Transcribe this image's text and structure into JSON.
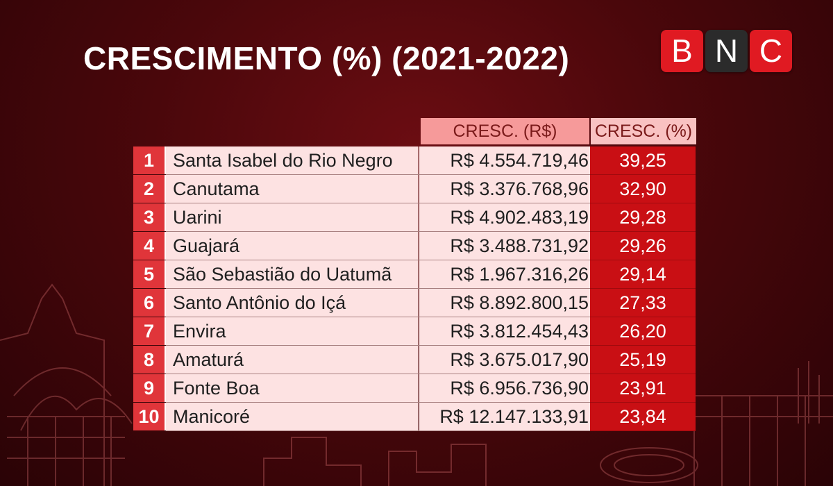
{
  "header": {
    "title": "CRESCIMENTO (%) (2021-2022)",
    "logo_letters": [
      "B",
      "N",
      "C"
    ]
  },
  "colors": {
    "background": "#4a070b",
    "rank_cell": "#e0353a",
    "pct_cell": "#c90f14",
    "light_cell": "#fde2e2",
    "logo_red": "#e01a22",
    "logo_dark": "#2b2b2b"
  },
  "chart_data": {
    "type": "table",
    "title": "CRESCIMENTO (%) (2021-2022)",
    "columns": [
      "",
      "",
      "CRESC. (R$)",
      "CRESC. (%)"
    ],
    "rows": [
      {
        "rank": "1",
        "municipio": "Santa Isabel do Rio Negro",
        "cresc_rs": "R$ 4.554.719,46",
        "cresc_pct": "39,25"
      },
      {
        "rank": "2",
        "municipio": "Canutama",
        "cresc_rs": "R$ 3.376.768,96",
        "cresc_pct": "32,90"
      },
      {
        "rank": "3",
        "municipio": "Uarini",
        "cresc_rs": "R$ 4.902.483,19",
        "cresc_pct": "29,28"
      },
      {
        "rank": "4",
        "municipio": "Guajará",
        "cresc_rs": "R$ 3.488.731,92",
        "cresc_pct": "29,26"
      },
      {
        "rank": "5",
        "municipio": "São Sebastião do Uatumã",
        "cresc_rs": "R$ 1.967.316,26",
        "cresc_pct": "29,14"
      },
      {
        "rank": "6",
        "municipio": "Santo Antônio do Içá",
        "cresc_rs": "R$ 8.892.800,15",
        "cresc_pct": "27,33"
      },
      {
        "rank": "7",
        "municipio": "Envira",
        "cresc_rs": "R$ 3.812.454,43",
        "cresc_pct": "26,20"
      },
      {
        "rank": "8",
        "municipio": "Amaturá",
        "cresc_rs": "R$ 3.675.017,90",
        "cresc_pct": "25,19"
      },
      {
        "rank": "9",
        "municipio": "Fonte Boa",
        "cresc_rs": "R$ 6.956.736,90",
        "cresc_pct": "23,91"
      },
      {
        "rank": "10",
        "municipio": "Manicoré",
        "cresc_rs": "R$ 12.147.133,91",
        "cresc_pct": "23,84"
      }
    ]
  }
}
